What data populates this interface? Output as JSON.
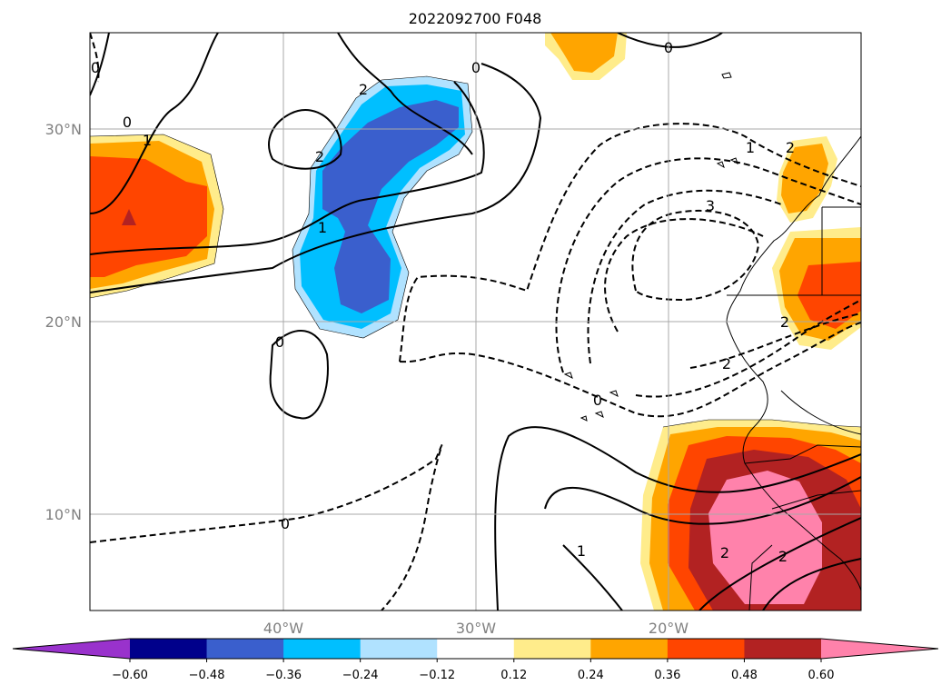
{
  "title": "2022092700 F048",
  "map": {
    "lon_ticks": [
      "40°W",
      "30°W",
      "20°W"
    ],
    "lat_ticks": [
      "30°N",
      "20°N",
      "10°N"
    ]
  },
  "contour_labels": [
    "0",
    "0",
    "0",
    "1",
    "1",
    "2",
    "2",
    "2",
    "1",
    "3",
    "2",
    "2",
    "0",
    "0",
    "0",
    "0",
    "1",
    "2",
    "2"
  ],
  "colorbar": {
    "colors": [
      "#9932cc",
      "#00008b",
      "#3a5fcd",
      "#00bfff",
      "#b0e2ff",
      "#ffffff",
      "#ffec8b",
      "#ffa500",
      "#ff4500",
      "#b22222",
      "#ff82ab"
    ],
    "tick_labels": [
      "−0.60",
      "−0.48",
      "−0.36",
      "−0.24",
      "−0.12",
      "0.12",
      "0.24",
      "0.36",
      "0.48",
      "0.60"
    ]
  }
}
